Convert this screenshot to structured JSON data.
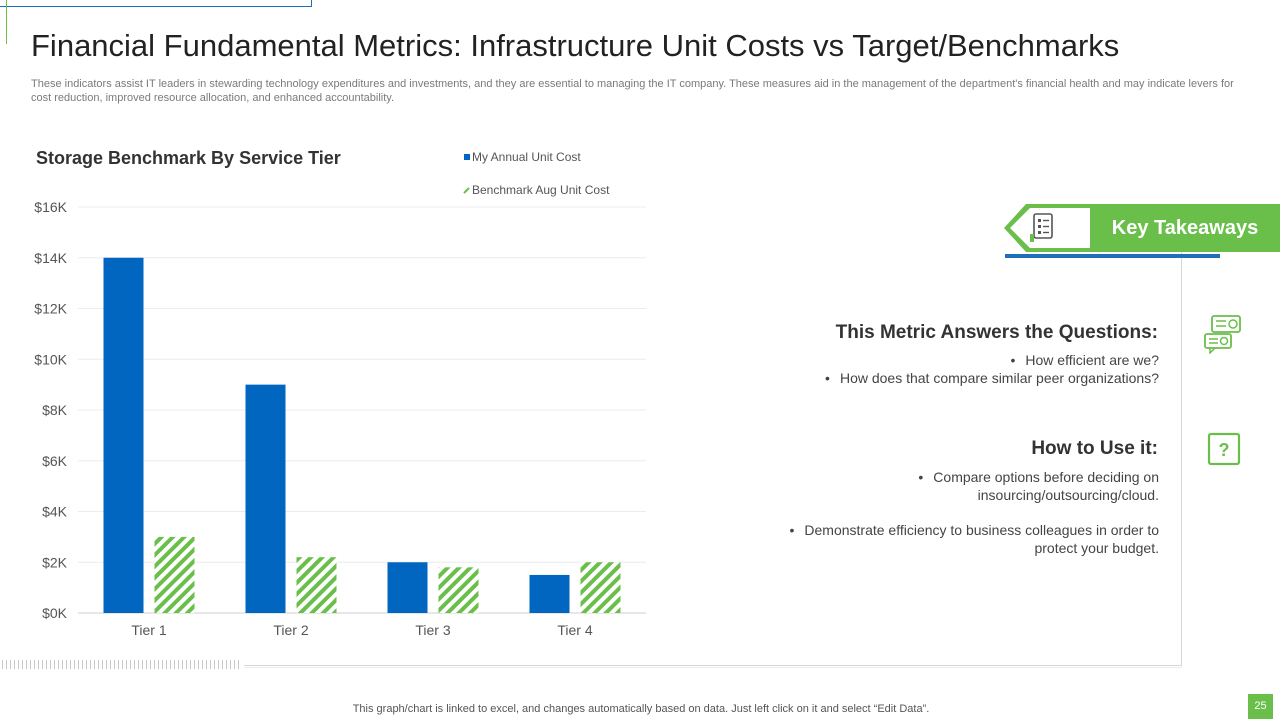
{
  "header": {
    "title": "Financial Fundamental Metrics: Infrastructure Unit Costs vs Target/Benchmarks",
    "subtitle": "These indicators assist IT leaders in stewarding technology expenditures and investments, and they are essential to managing the IT company. These measures aid in the management of the department's financial health and may indicate levers for cost reduction, improved resource allocation, and enhanced accountability."
  },
  "chart_data": {
    "type": "bar",
    "title": "Storage Benchmark By Service Tier",
    "categories": [
      "Tier 1",
      "Tier 2",
      "Tier 3",
      "Tier 4"
    ],
    "series": [
      {
        "name": "My Annual Unit Cost",
        "values": [
          14000,
          9000,
          2000,
          1500
        ]
      },
      {
        "name": "Benchmark Aug Unit Cost",
        "values": [
          3000,
          2200,
          1800,
          2000
        ]
      }
    ],
    "ylim": [
      0,
      16000
    ],
    "yticks": [
      0,
      2000,
      4000,
      6000,
      8000,
      10000,
      12000,
      14000,
      16000
    ],
    "ytick_labels": [
      "$0K",
      "$2K",
      "$4K",
      "$6K",
      "$8K",
      "$10K",
      "$12K",
      "$14K",
      "$16K"
    ],
    "xlabel": "",
    "ylabel": "",
    "legend_position": "top-right",
    "grid": true
  },
  "colors": {
    "series1": "#0066c0",
    "series2": "#6abf4b",
    "accent_green": "#6abf4b",
    "accent_blue": "#1f6eb8"
  },
  "takeaways": {
    "banner_label": "Key Takeaways",
    "banner_icon": "checklist-document-icon",
    "questions_heading": "This Metric Answers the Questions:",
    "questions": [
      "How efficient are we?",
      "How does that compare similar peer organizations?"
    ],
    "use_heading": "How to Use it:",
    "uses": [
      [
        "Compare options before deciding on",
        "insourcing/outsourcing/cloud."
      ],
      [
        "Demonstrate efficiency to business colleagues in order to",
        "protect your budget."
      ]
    ],
    "side_icons": [
      "chat-bubbles-icon",
      "question-box-icon"
    ]
  },
  "footer": {
    "note": "This graph/chart is linked to excel,  and changes automatically based on data. Just left click on it and select “Edit Data”.",
    "page_number": "25"
  }
}
